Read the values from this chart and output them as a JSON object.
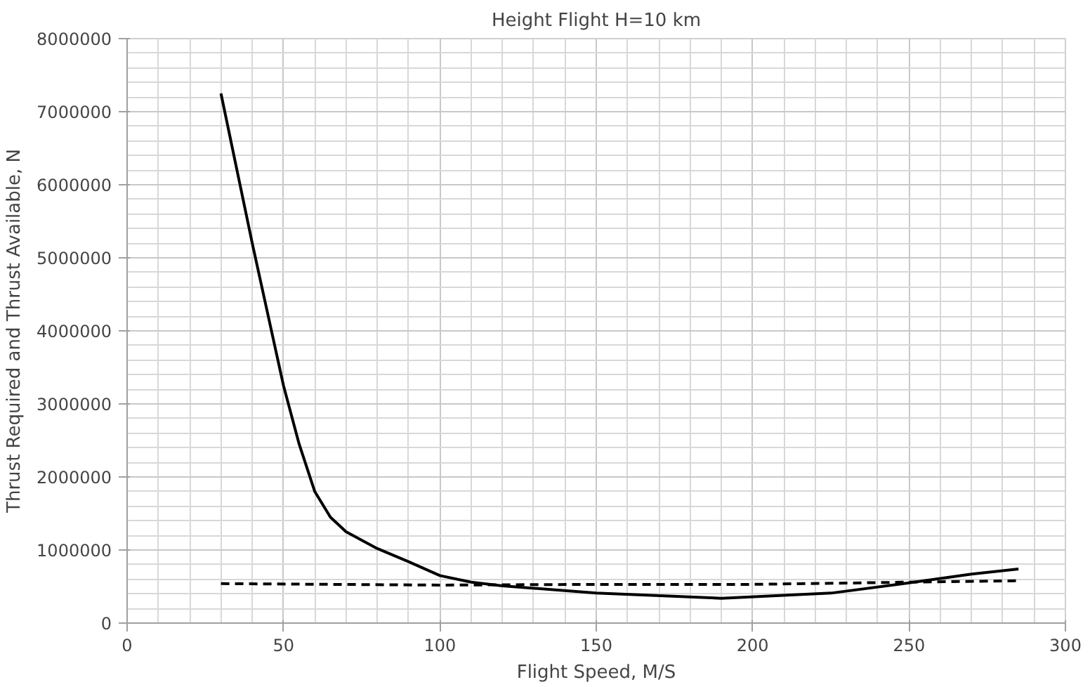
{
  "chart_data": {
    "type": "line",
    "title": "Height Flight H=10 km",
    "xlabel": "Flight Speed, M/S",
    "ylabel": "Thrust Required and Thrust Available, N",
    "xlim": [
      0,
      300
    ],
    "xticks": [
      0,
      50,
      100,
      150,
      200,
      250,
      300
    ],
    "ylim": [
      0,
      8000000
    ],
    "yticks": [
      0,
      1000000,
      2000000,
      3000000,
      4000000,
      5000000,
      6000000,
      7000000,
      8000000
    ],
    "grid": true,
    "marker": "none",
    "series": [
      {
        "color": "#000000",
        "line_style": "solid",
        "x": [
          30,
          40,
          50,
          55,
          60,
          65,
          70,
          80,
          90,
          100,
          110,
          120,
          150,
          190,
          225,
          250,
          270,
          285
        ],
        "values": [
          7250000,
          5200000,
          3250000,
          2450000,
          1800000,
          1450000,
          1250000,
          1020000,
          840000,
          650000,
          560000,
          510000,
          410000,
          340000,
          410000,
          550000,
          670000,
          740000
        ]
      },
      {
        "color": "#000000",
        "line_style": "dashed",
        "x": [
          30,
          100,
          150,
          200,
          250,
          285
        ],
        "values": [
          540000,
          520000,
          530000,
          530000,
          560000,
          580000
        ]
      }
    ]
  }
}
